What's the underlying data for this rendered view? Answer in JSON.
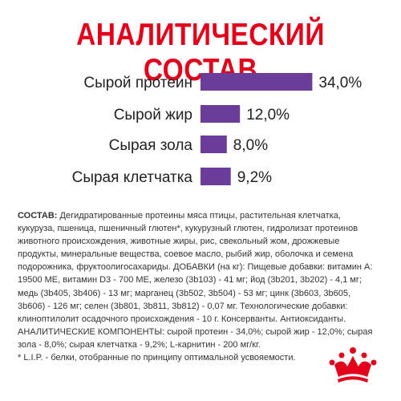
{
  "title": "АНАЛИТИЧЕСКИЙ СОСТАВ",
  "chart_data": {
    "type": "bar",
    "orientation": "horizontal",
    "categories": [
      "Сырой протеин",
      "Сырой жир",
      "Сырая зола",
      "Сырая клетчатка"
    ],
    "values": [
      34.0,
      12.0,
      8.0,
      9.2
    ],
    "value_labels": [
      "34,0%",
      "12,0%",
      "8,0%",
      "9,2%"
    ],
    "unit": "%",
    "grid": false,
    "colors": {
      "bar": "#6a3d9a"
    }
  },
  "composition": {
    "label": "СОСТАВ:",
    "lines": [
      "Дегидратированные протеины мяса птицы, растительная клетчатка,",
      "кукуруза, пшеница, пшеничный глютен*, кукурузный глютен, гидролизат протеинов",
      "животного происхождения, животные жиры, рис, свекольный жом, дрожжевые",
      "продукты, минеральные вещества, соевое масло, рыбий жир, оболочка и семена",
      "подорожника, фруктоолигосахариды. ДОБАВКИ (на кг): Пищевые добавки: витамин А:",
      "19500 МЕ, витамин D3 - 700 МЕ, железо (3b103) - 41 мг; йод (3b201, 3b202) - 4,1 мг;",
      "медь (3b405, 3b406) - 13 мг; марганец (3b502, 3b504) - 53 мг; цинк (3b603, 3b605,",
      "3b606) - 126 мг; селен (3b801, 3b811, 3b812) - 0,07 мг. Технологические добавки:",
      "клиноптилолит осадочного происхождения - 10 г. Консерванты. Антиоксиданты.",
      "АНАЛИТИЧЕСКИЕ КОМПОНЕНТЫ: сырой протеин - 34,0%; сырой жир - 12,0%; сырая",
      "зола - 8,0%; сырая клетчатка - 9,2%; L-карнитин - 200 мг/кг.",
      "* L.I.P. - белки, отобранные по принципу оптимальной усвояемости."
    ]
  },
  "brand": {
    "color": "#e2001a"
  }
}
